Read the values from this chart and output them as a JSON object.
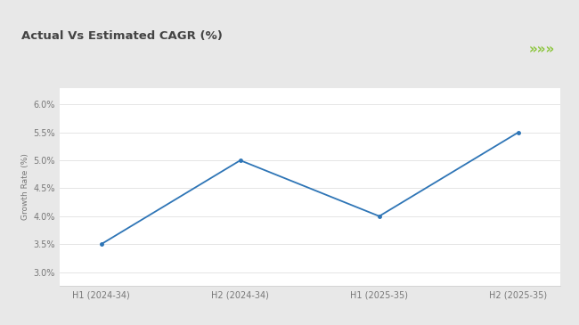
{
  "title": "Actual Vs Estimated CAGR (%)",
  "x_labels": [
    "H1 (2024-34)",
    "H2 (2024-34)",
    "H1 (2025-35)",
    "H2 (2025-35)"
  ],
  "y_values": [
    3.5,
    5.0,
    4.0,
    5.5
  ],
  "y_ticks": [
    3.0,
    3.5,
    4.0,
    4.5,
    5.0,
    5.5,
    6.0
  ],
  "y_tick_labels": [
    "3.0%",
    "3.5%",
    "4.0%",
    "4.5%",
    "5.0%",
    "5.5%",
    "6.0%"
  ],
  "ylim": [
    2.75,
    6.3
  ],
  "ylabel": "Growth Rate (%)",
  "line_color": "#2e75b6",
  "bg_color": "#e8e8e8",
  "card_color": "#ffffff",
  "green_bar_color": "#8dc63f",
  "title_fontsize": 9.5,
  "label_fontsize": 6.5,
  "tick_fontsize": 7,
  "arrow_color": "#8dc63f",
  "arrow_symbol": "»»»"
}
